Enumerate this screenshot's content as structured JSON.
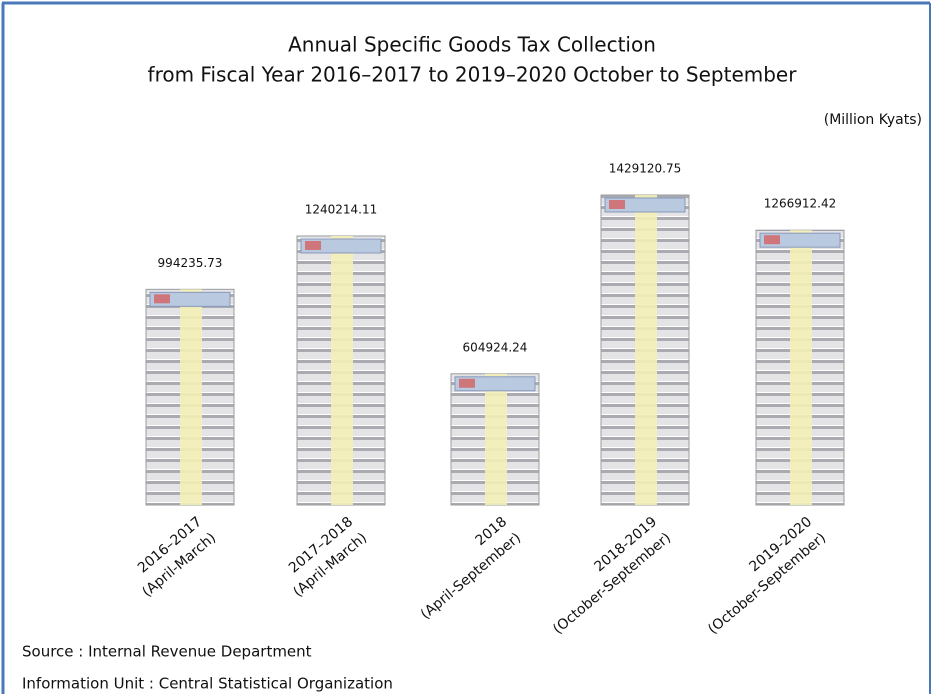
{
  "chart_data": {
    "type": "bar",
    "title": "Annual Specific Goods Tax Collection",
    "subtitle": "from Fiscal Year  2016–2017 to 2019–2020 October to September",
    "unit": "(Million Kyats)",
    "categories": [
      [
        "2016–2017",
        "(April-March)"
      ],
      [
        "2017–2018",
        "(April-March)"
      ],
      [
        "2018",
        "(April-September)"
      ],
      [
        "2018-2019",
        "(October-September)"
      ],
      [
        "2019-2020",
        "(October-September)"
      ]
    ],
    "values": [
      994235.73,
      1240214.11,
      604924.24,
      1429120.75,
      1266912.42
    ],
    "color": "#dcdcdc",
    "source": "Source : Internal Revenue Department",
    "info": "Information Unit :  Central Statistical Organization"
  }
}
